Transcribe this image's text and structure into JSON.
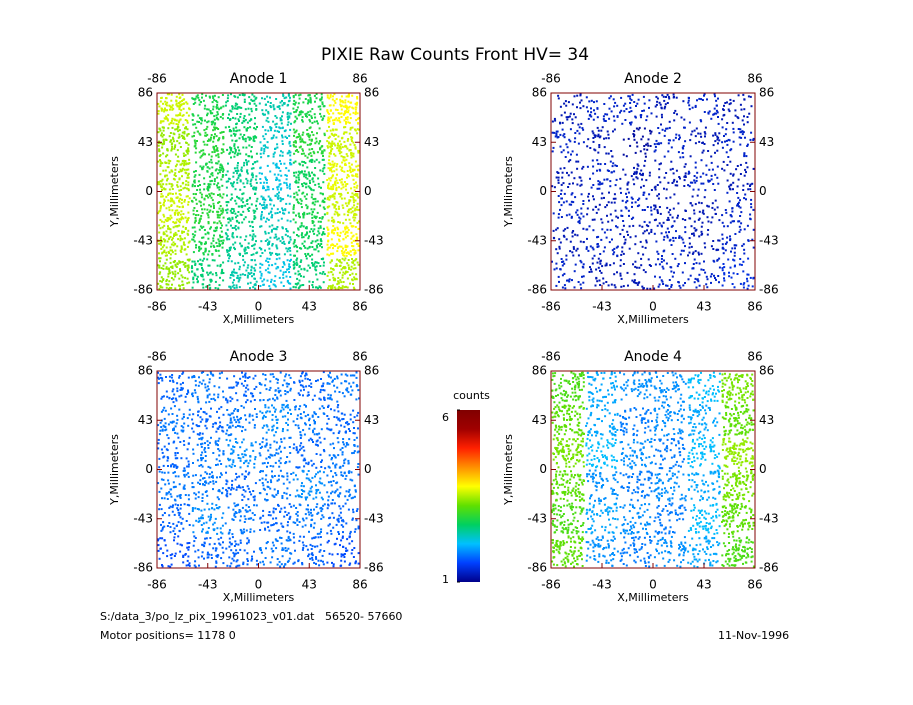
{
  "title": "PIXIE Raw Counts Front HV= 34",
  "chart_data": [
    {
      "type": "heatmap",
      "title": "Anode 1",
      "xlabel": "X,Millimeters",
      "ylabel": "Y,Millimeters",
      "xlim": [
        -86,
        86
      ],
      "ylim": [
        -86,
        86
      ],
      "xticks": [
        -86,
        -43,
        0,
        43,
        86
      ],
      "yticks": [
        -86,
        -43,
        0,
        43,
        86
      ],
      "x2ticks": [
        -86,
        86
      ],
      "y2ticks": [
        -86,
        -43,
        0,
        43,
        86
      ],
      "z": [
        [
          3.6,
          2.8,
          2.6,
          2.4,
          2.8,
          3.8
        ],
        [
          3.4,
          2.9,
          2.7,
          2.3,
          2.9,
          3.6
        ],
        [
          3.5,
          2.8,
          2.5,
          2.2,
          2.7,
          3.7
        ],
        [
          3.6,
          2.9,
          2.6,
          2.3,
          2.8,
          3.6
        ],
        [
          3.5,
          2.8,
          2.5,
          2.4,
          2.7,
          3.8
        ],
        [
          3.4,
          2.6,
          2.4,
          2.2,
          2.6,
          3.5
        ]
      ]
    },
    {
      "type": "heatmap",
      "title": "Anode 2",
      "xlabel": "X,Millimeters",
      "ylabel": "Y,Millimeters",
      "xlim": [
        -86,
        86
      ],
      "ylim": [
        -86,
        86
      ],
      "xticks": [
        -86,
        -43,
        0,
        43,
        86
      ],
      "yticks": [
        -86,
        -43,
        0,
        43,
        86
      ],
      "x2ticks": [
        -86,
        86
      ],
      "y2ticks": [
        -86,
        -43,
        0,
        43,
        86
      ],
      "z": [
        [
          1.2,
          1.3,
          1.3,
          1.2,
          1.3,
          1.2
        ],
        [
          1.3,
          1.2,
          1.1,
          1.3,
          1.2,
          1.3
        ],
        [
          1.2,
          1.3,
          1.2,
          1.2,
          1.3,
          1.2
        ],
        [
          1.3,
          1.2,
          1.3,
          1.2,
          1.2,
          1.3
        ],
        [
          1.2,
          1.3,
          1.2,
          1.3,
          1.2,
          1.3
        ],
        [
          1.3,
          1.2,
          1.2,
          1.3,
          1.3,
          1.4
        ]
      ]
    },
    {
      "type": "heatmap",
      "title": "Anode 3",
      "xlabel": "X,Millimeters",
      "ylabel": "Y,Millimeters",
      "xlim": [
        -86,
        86
      ],
      "ylim": [
        -86,
        86
      ],
      "xticks": [
        -86,
        -43,
        0,
        43,
        86
      ],
      "yticks": [
        -86,
        -43,
        0,
        43,
        86
      ],
      "x2ticks": [
        -86,
        86
      ],
      "y2ticks": [
        -86,
        -43,
        0,
        43,
        86
      ],
      "z": [
        [
          1.7,
          1.8,
          1.7,
          1.8,
          1.7,
          1.8
        ],
        [
          1.8,
          1.7,
          1.8,
          1.9,
          1.8,
          1.7
        ],
        [
          1.7,
          1.8,
          1.9,
          1.8,
          1.7,
          1.8
        ],
        [
          1.8,
          1.8,
          1.7,
          1.8,
          1.9,
          1.8
        ],
        [
          1.7,
          1.9,
          1.8,
          1.7,
          1.8,
          1.7
        ],
        [
          1.6,
          1.7,
          1.7,
          1.8,
          1.7,
          1.6
        ]
      ]
    },
    {
      "type": "heatmap",
      "title": "Anode 4",
      "xlabel": "X,Millimeters",
      "ylabel": "Y,Millimeters",
      "xlim": [
        -86,
        86
      ],
      "ylim": [
        -86,
        86
      ],
      "xticks": [
        -86,
        -43,
        0,
        43,
        86
      ],
      "yticks": [
        -86,
        -43,
        0,
        43,
        86
      ],
      "x2ticks": [
        -86,
        86
      ],
      "y2ticks": [
        -86,
        -43,
        0,
        43,
        86
      ],
      "z": [
        [
          3.1,
          2.0,
          1.9,
          1.9,
          2.1,
          3.3
        ],
        [
          3.2,
          2.0,
          1.8,
          1.9,
          2.0,
          3.2
        ],
        [
          3.3,
          2.1,
          1.9,
          1.8,
          2.1,
          3.4
        ],
        [
          3.2,
          1.9,
          1.8,
          1.9,
          2.0,
          3.3
        ],
        [
          3.1,
          2.0,
          1.9,
          1.8,
          2.1,
          3.2
        ],
        [
          3.2,
          1.9,
          1.8,
          1.9,
          2.0,
          3.1
        ]
      ]
    }
  ],
  "colorbar": {
    "label": "counts",
    "lim": [
      1,
      6
    ],
    "ticks": [
      1,
      6
    ],
    "colors": [
      "#00008b",
      "#0040ff",
      "#00c0ff",
      "#00d060",
      "#60e000",
      "#ffff00",
      "#ff9000",
      "#ff2000",
      "#a00000",
      "#800000"
    ]
  },
  "footer": {
    "file": "S:/data_3/po_lz_pix_19961023_v01.dat   56520- 57660",
    "motor": "Motor positions= 1178 0",
    "date": "11-Nov-1996"
  }
}
